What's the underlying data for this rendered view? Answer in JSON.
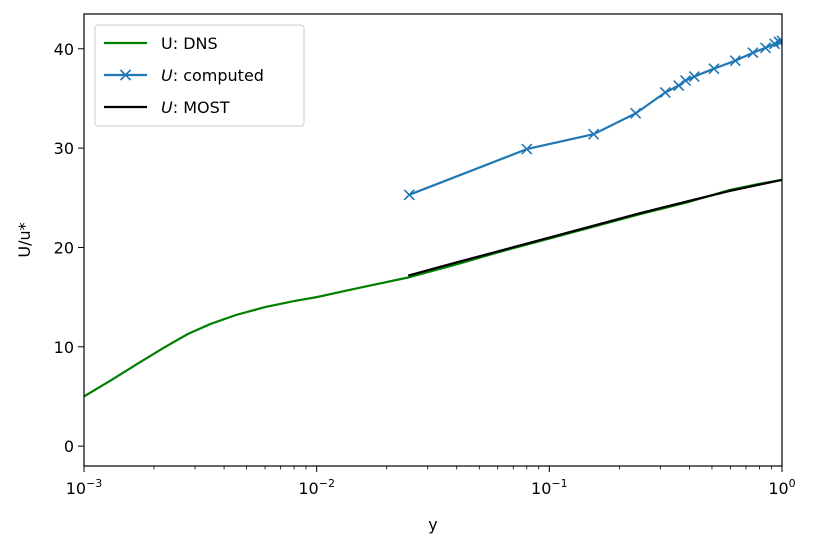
{
  "chart_data": {
    "type": "line",
    "title": "",
    "xlabel": "y",
    "ylabel": "U/u*",
    "xscale": "log",
    "xlim": [
      0.001,
      1
    ],
    "ylim": [
      -2,
      43.5
    ],
    "grid": false,
    "legend_position": "top-left",
    "x_ticks": [
      {
        "value": 0.001,
        "base": "10",
        "exp": "−3"
      },
      {
        "value": 0.01,
        "base": "10",
        "exp": "−2"
      },
      {
        "value": 0.1,
        "base": "10",
        "exp": "−1"
      },
      {
        "value": 1,
        "base": "10",
        "exp": "0"
      }
    ],
    "y_ticks": [
      0,
      10,
      20,
      30,
      40
    ],
    "series": [
      {
        "name": "U: DNS",
        "legend_prefix": "U",
        "legend_suffix": ": DNS",
        "legend_italic": false,
        "color": "#008000",
        "marker": "none",
        "x": [
          0.001,
          0.0013,
          0.0017,
          0.0022,
          0.0028,
          0.0035,
          0.0045,
          0.006,
          0.008,
          0.01,
          0.015,
          0.025,
          0.04,
          0.06,
          0.1,
          0.15,
          0.25,
          0.4,
          0.6,
          0.8,
          1.0
        ],
        "y": [
          5.0,
          6.6,
          8.3,
          9.9,
          11.3,
          12.3,
          13.2,
          14.0,
          14.6,
          15.0,
          15.9,
          17.0,
          18.3,
          19.5,
          20.9,
          22.0,
          23.4,
          24.6,
          25.8,
          26.4,
          26.8
        ]
      },
      {
        "name": "U: computed",
        "legend_prefix": "U",
        "legend_suffix": ": computed",
        "legend_italic": true,
        "color": "#1f77b4",
        "marker": "x",
        "x": [
          0.025,
          0.08,
          0.155,
          0.235,
          0.315,
          0.36,
          0.385,
          0.42,
          0.51,
          0.63,
          0.75,
          0.85,
          0.93,
          0.97,
          1.0
        ],
        "y": [
          25.3,
          29.9,
          31.4,
          33.5,
          35.6,
          36.3,
          36.8,
          37.2,
          38.0,
          38.8,
          39.6,
          40.1,
          40.5,
          40.7,
          40.8
        ]
      },
      {
        "name": "U: MOST",
        "legend_prefix": "U",
        "legend_suffix": ": MOST",
        "legend_italic": true,
        "color": "#000000",
        "marker": "none",
        "x": [
          0.025,
          0.04,
          0.06,
          0.1,
          0.15,
          0.25,
          0.4,
          0.6,
          1.0
        ],
        "y": [
          17.2,
          18.5,
          19.6,
          21.0,
          22.1,
          23.5,
          24.7,
          25.7,
          26.8
        ]
      }
    ]
  }
}
